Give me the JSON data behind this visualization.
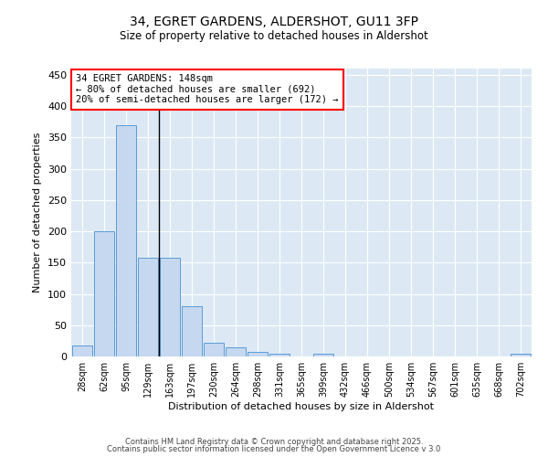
{
  "title": "34, EGRET GARDENS, ALDERSHOT, GU11 3FP",
  "subtitle": "Size of property relative to detached houses in Aldershot",
  "xlabel": "Distribution of detached houses by size in Aldershot",
  "ylabel": "Number of detached properties",
  "bar_color": "#c5d8f0",
  "bar_edge_color": "#5b9bd5",
  "background_color": "#dce9f5",
  "categories": [
    "28sqm",
    "62sqm",
    "95sqm",
    "129sqm",
    "163sqm",
    "197sqm",
    "230sqm",
    "264sqm",
    "298sqm",
    "331sqm",
    "365sqm",
    "399sqm",
    "432sqm",
    "466sqm",
    "500sqm",
    "534sqm",
    "567sqm",
    "601sqm",
    "635sqm",
    "668sqm",
    "702sqm"
  ],
  "values": [
    18,
    200,
    370,
    158,
    158,
    80,
    22,
    14,
    7,
    4,
    0,
    5,
    0,
    0,
    0,
    0,
    0,
    0,
    0,
    0,
    4
  ],
  "ylim": [
    0,
    460
  ],
  "yticks": [
    0,
    50,
    100,
    150,
    200,
    250,
    300,
    350,
    400,
    450
  ],
  "annotation_text": "34 EGRET GARDENS: 148sqm\n← 80% of detached houses are smaller (692)\n20% of semi-detached houses are larger (172) →",
  "vline_x": 3.5,
  "footer_line1": "Contains HM Land Registry data © Crown copyright and database right 2025.",
  "footer_line2": "Contains public sector information licensed under the Open Government Licence v 3.0"
}
